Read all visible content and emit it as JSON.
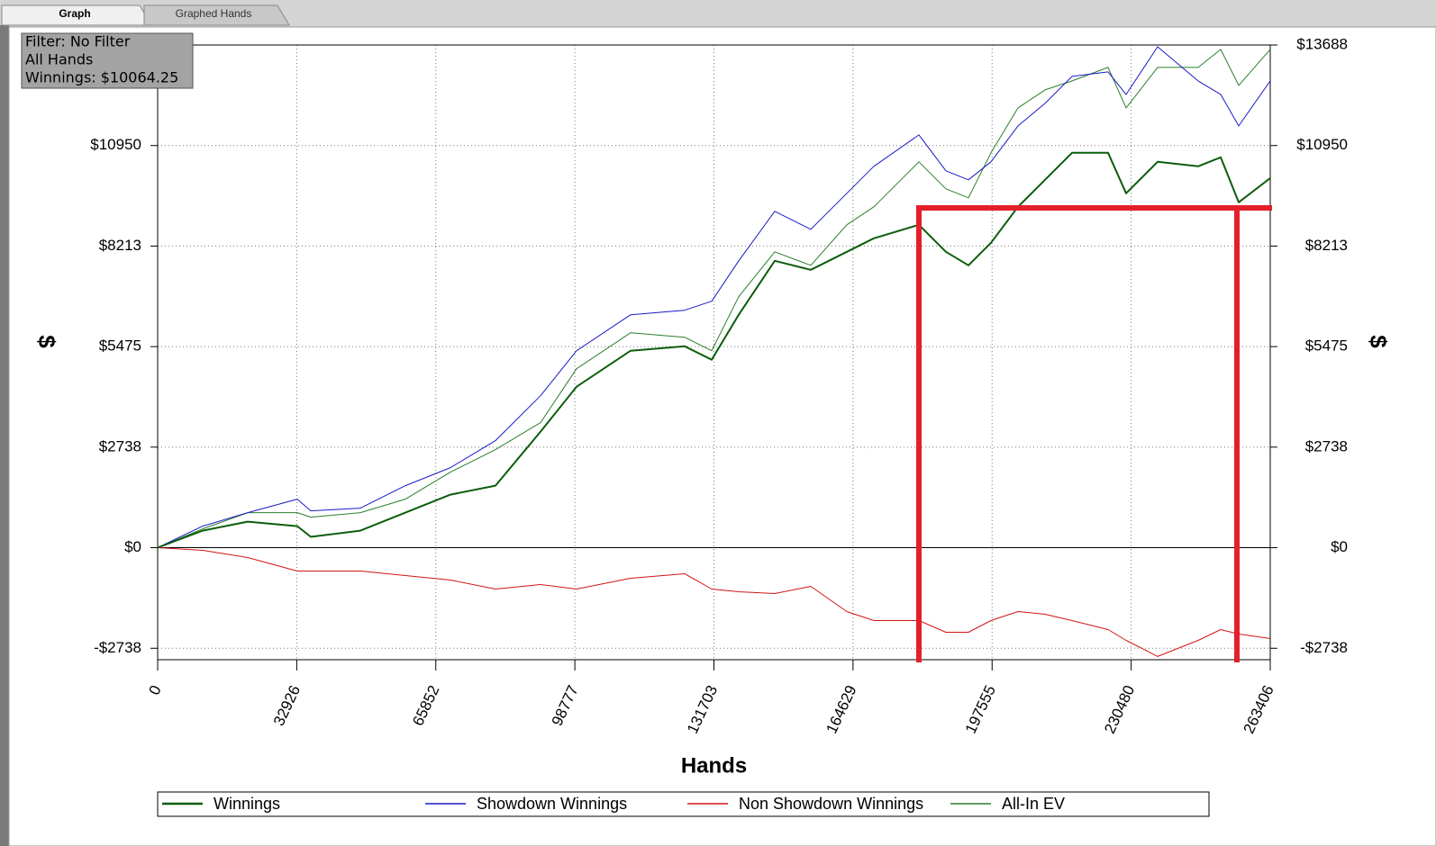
{
  "tabs": [
    "Graph",
    "Graphed Hands"
  ],
  "filter_box": [
    "Filter: No Filter",
    "All Hands",
    "Winnings: $10064.25"
  ],
  "chart_data": {
    "type": "line",
    "x_axis_label": "Hands",
    "y_axis_label": "$",
    "y2_axis_label": "$",
    "grid": true,
    "legend": "bottom",
    "xlim": [
      0,
      263406
    ],
    "xticks": [
      0,
      32926,
      65852,
      98777,
      131703,
      164629,
      197555,
      230480,
      263406
    ],
    "ylim": [
      -3050,
      13688
    ],
    "yticks": [
      {
        "value": -2738,
        "label": "-$2738"
      },
      {
        "value": 0,
        "label": "$0"
      },
      {
        "value": 2738,
        "label": "$2738"
      },
      {
        "value": 5475,
        "label": "$5475"
      },
      {
        "value": 8213,
        "label": "$8213"
      },
      {
        "value": 10950,
        "label": "$10950"
      },
      {
        "value": 13688,
        "label": "$13688"
      }
    ],
    "x": [
      0,
      10664,
      21328,
      33058,
      36258,
      47988,
      58652,
      69316,
      79980,
      90644,
      99175,
      111972,
      124769,
      131167,
      137566,
      146097,
      154628,
      163159,
      169558,
      180222,
      186620,
      191952,
      197284,
      203682,
      210081,
      216479,
      225010,
      229276,
      236741,
      246338,
      251670,
      255936,
      263406
    ],
    "series": [
      {
        "name": "Winnings",
        "color": "#0b5e0b",
        "width": 2,
        "values": [
          0,
          465,
          710,
          588,
          294,
          465,
          955,
          1445,
          1690,
          3159,
          4384,
          5363,
          5486,
          5118,
          6343,
          7812,
          7567,
          8057,
          8424,
          8792,
          8057,
          7690,
          8302,
          9282,
          10016,
          10751,
          10751,
          9649,
          10506,
          10384,
          10629,
          9404,
          10064
        ]
      },
      {
        "name": "Showdown Winnings",
        "color": "#1a1ac8",
        "width": 1,
        "values": [
          0,
          588,
          955,
          1322,
          1004,
          1078,
          1690,
          2180,
          2914,
          4139,
          5363,
          6343,
          6465,
          6710,
          7812,
          9159,
          8669,
          9649,
          10384,
          11241,
          10261,
          10016,
          10506,
          11486,
          12098,
          12833,
          12955,
          12343,
          13640,
          12710,
          12343,
          11486,
          12710
        ]
      },
      {
        "name": "Non Showdown Winnings",
        "color": "#d41414",
        "width": 1,
        "values": [
          0,
          -73,
          -269,
          -637,
          -637,
          -637,
          -759,
          -882,
          -1127,
          -1004,
          -1127,
          -833,
          -710,
          -1127,
          -1200,
          -1249,
          -1053,
          -1739,
          -1984,
          -1984,
          -2302,
          -2302,
          -1984,
          -1739,
          -1812,
          -1984,
          -2229,
          -2522,
          -2963,
          -2522,
          -2229,
          -2351,
          -2473
        ]
      },
      {
        "name": "All-In EV",
        "color": "#2a7f2a",
        "width": 1,
        "values": [
          0,
          514,
          955,
          955,
          833,
          955,
          1322,
          2057,
          2669,
          3404,
          4873,
          5853,
          5731,
          5363,
          6833,
          8057,
          7690,
          8792,
          9282,
          10506,
          9771,
          9526,
          10751,
          11975,
          12465,
          12710,
          13077,
          11975,
          13077,
          13077,
          13567,
          12587,
          13567
        ]
      }
    ]
  }
}
